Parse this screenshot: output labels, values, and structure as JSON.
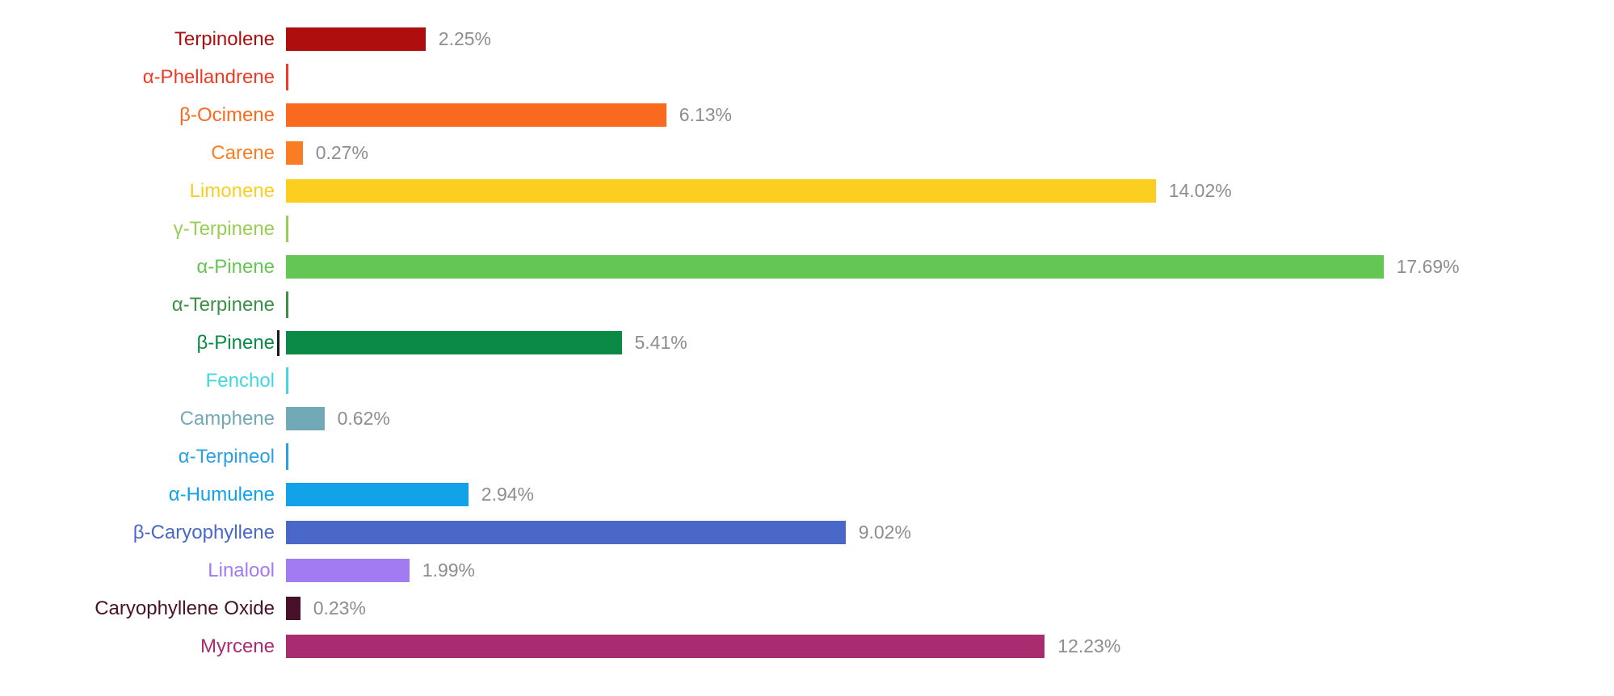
{
  "chart_data": {
    "type": "bar",
    "orientation": "horizontal",
    "title": "",
    "xlabel": "",
    "ylabel": "",
    "xlim": [
      0,
      21.4
    ],
    "grid": false,
    "legend": "none",
    "value_suffix": "%",
    "value_label_color": "#8D8D8D",
    "categories": [
      "Terpinolene",
      "α-Phellandrene",
      "β-Ocimene",
      "Carene",
      "Limonene",
      "γ-Terpinene",
      "α-Pinene",
      "α-Terpinene",
      "β-Pinene",
      "Fenchol",
      "Camphene",
      "α-Terpineol",
      "α-Humulene",
      "β-Caryophyllene",
      "Linalool",
      "Caryophyllene Oxide",
      "Myrcene"
    ],
    "values": [
      2.25,
      0,
      6.13,
      0.27,
      14.02,
      0,
      17.69,
      0,
      5.41,
      0,
      0.62,
      0,
      2.94,
      9.02,
      1.99,
      0.23,
      12.23
    ],
    "rows": [
      {
        "label": "Terpinolene",
        "value": 2.25,
        "value_label": "2.25%",
        "color": "#AE0E0E",
        "text_cursor": false
      },
      {
        "label": "α-Phellandrene",
        "value": 0,
        "value_label": "",
        "color": "#ED3B25",
        "text_cursor": false
      },
      {
        "label": "β-Ocimene",
        "value": 6.13,
        "value_label": "6.13%",
        "color": "#FA6A1E",
        "text_cursor": false
      },
      {
        "label": "Carene",
        "value": 0.27,
        "value_label": "0.27%",
        "color": "#FB7D23",
        "text_cursor": false
      },
      {
        "label": "Limonene",
        "value": 14.02,
        "value_label": "14.02%",
        "color": "#FBCE1F",
        "text_cursor": false
      },
      {
        "label": "γ-Terpinene",
        "value": 0,
        "value_label": "",
        "color": "#97CE53",
        "text_cursor": false
      },
      {
        "label": "α-Pinene",
        "value": 17.69,
        "value_label": "17.69%",
        "color": "#64C653",
        "text_cursor": false
      },
      {
        "label": "α-Terpinene",
        "value": 0,
        "value_label": "",
        "color": "#3C9048",
        "text_cursor": false
      },
      {
        "label": "β-Pinene",
        "value": 5.41,
        "value_label": "5.41%",
        "color": "#0A8A44",
        "text_cursor": true
      },
      {
        "label": "Fenchol",
        "value": 0,
        "value_label": "",
        "color": "#44D7DF",
        "text_cursor": false
      },
      {
        "label": "Camphene",
        "value": 0.62,
        "value_label": "0.62%",
        "color": "#72A9B6",
        "text_cursor": false
      },
      {
        "label": "α-Terpineol",
        "value": 0,
        "value_label": "",
        "color": "#2BA0E3",
        "text_cursor": false
      },
      {
        "label": "α-Humulene",
        "value": 2.94,
        "value_label": "2.94%",
        "color": "#12A2E8",
        "text_cursor": false
      },
      {
        "label": "β-Caryophyllene",
        "value": 9.02,
        "value_label": "9.02%",
        "color": "#4968C7",
        "text_cursor": false
      },
      {
        "label": "Linalool",
        "value": 1.99,
        "value_label": "1.99%",
        "color": "#A27AF2",
        "text_cursor": false
      },
      {
        "label": "Caryophyllene Oxide",
        "value": 0.23,
        "value_label": "0.23%",
        "color": "#481129",
        "text_cursor": false
      },
      {
        "label": "Myrcene",
        "value": 12.23,
        "value_label": "12.23%",
        "color": "#A92C70",
        "text_cursor": false
      }
    ]
  }
}
